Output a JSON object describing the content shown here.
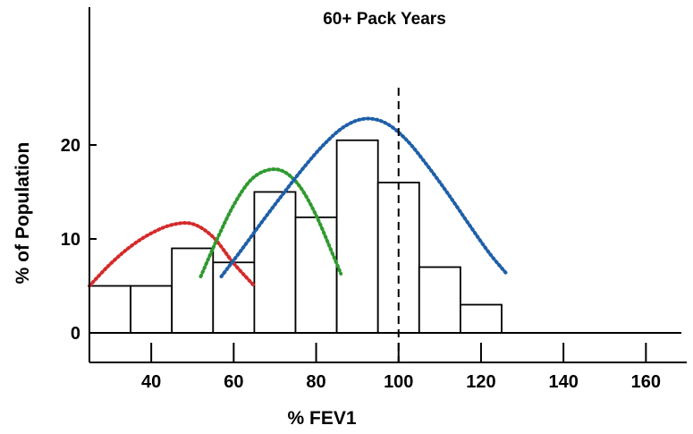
{
  "chart_data": {
    "type": "bar",
    "title": "60+ Pack Years",
    "xlabel": "% FEV1",
    "ylabel": "% of Population",
    "xlim": [
      25,
      170
    ],
    "ylim": [
      0,
      30
    ],
    "x_ticks": [
      40,
      60,
      80,
      100,
      120,
      140,
      160
    ],
    "y_ticks": [
      0,
      10,
      20
    ],
    "bins": [
      {
        "from": 25,
        "to": 35,
        "value": 5
      },
      {
        "from": 35,
        "to": 45,
        "value": 5
      },
      {
        "from": 45,
        "to": 55,
        "value": 9
      },
      {
        "from": 55,
        "to": 65,
        "value": 7.5
      },
      {
        "from": 65,
        "to": 75,
        "value": 15
      },
      {
        "from": 75,
        "to": 85,
        "value": 12.3
      },
      {
        "from": 85,
        "to": 95,
        "value": 20.5
      },
      {
        "from": 95,
        "to": 105,
        "value": 16
      },
      {
        "from": 105,
        "to": 115,
        "value": 7
      },
      {
        "from": 115,
        "to": 125,
        "value": 3
      }
    ],
    "reference_line": {
      "x": 100,
      "style": "dashed"
    },
    "curves": [
      {
        "color": "#d42a2a",
        "x": [
          25,
          30,
          35,
          40,
          45,
          50,
          55,
          60,
          65
        ],
        "y": [
          5,
          7.3,
          9.2,
          10.6,
          11.5,
          11.6,
          10.2,
          7.4,
          5
        ]
      },
      {
        "color": "#2f9a2f",
        "x": [
          52,
          56,
          60,
          64,
          68,
          72,
          76,
          80,
          84,
          86
        ],
        "y": [
          6,
          10,
          13.6,
          16.2,
          17.3,
          17.2,
          15.6,
          12.5,
          8.4,
          6.3
        ]
      },
      {
        "color": "#1e5fa8",
        "x": [
          57,
          62,
          67,
          72,
          77,
          82,
          87,
          92,
          97,
          102,
          107,
          112,
          117,
          122,
          126
        ],
        "y": [
          6,
          8.9,
          11.9,
          14.8,
          17.6,
          20.1,
          22,
          22.8,
          22.3,
          20.5,
          17.8,
          14.8,
          11.6,
          8.5,
          6.4
        ]
      }
    ]
  }
}
